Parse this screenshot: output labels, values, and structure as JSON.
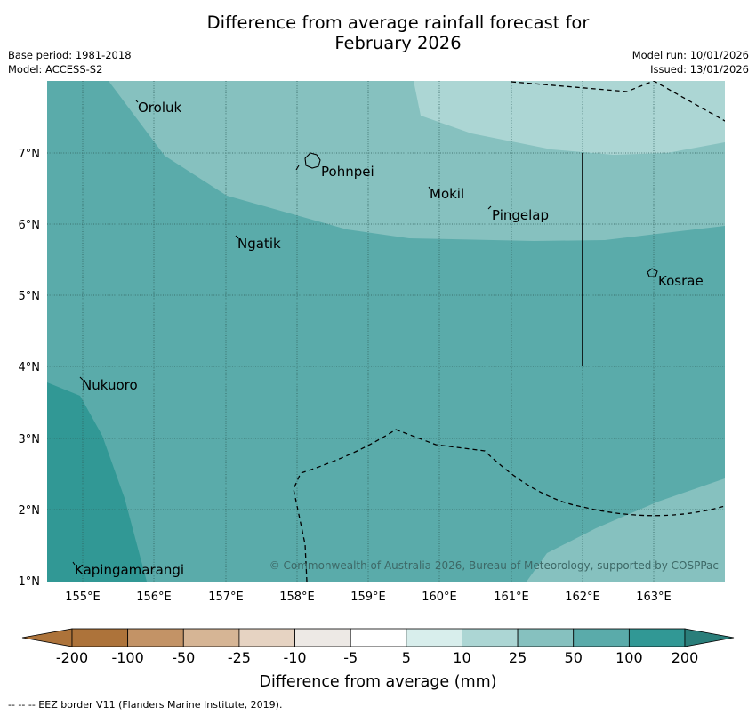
{
  "title": {
    "line1": "Difference from average rainfall forecast for",
    "line2": "February 2026"
  },
  "meta": {
    "base_period": "Base period: 1981-2018",
    "model": "Model: ACCESS-S2",
    "model_run": "Model run: 10/01/2026",
    "issued": "Issued: 13/01/2026"
  },
  "axes": {
    "lon_labels": [
      "155°E",
      "156°E",
      "157°E",
      "158°E",
      "159°E",
      "160°E",
      "161°E",
      "162°E",
      "163°E"
    ],
    "lat_labels": [
      "7°N",
      "6°N",
      "5°N",
      "4°N",
      "3°N",
      "2°N",
      "1°N"
    ]
  },
  "places": {
    "oroluk": "Oroluk",
    "pohnpei": "Pohnpei",
    "mokil": "Mokil",
    "pingelap": "Pingelap",
    "ngatik": "Ngatik",
    "kosrae": "Kosrae",
    "nukuoro": "Nukuoro",
    "kapingamarangi": "Kapingamarangi"
  },
  "copyright": "© Commonwealth of Australia 2026, Bureau of Meteorology, supported by COSPPac",
  "colorbar": {
    "ticks": [
      "-200",
      "-100",
      "-50",
      "-25",
      "-10",
      "-5",
      "5",
      "10",
      "25",
      "50",
      "100",
      "200"
    ],
    "colors": [
      "#ad733a",
      "#c39366",
      "#d6b595",
      "#e6d3c2",
      "#ede9e5",
      "#ffffff",
      "#d8eeec",
      "#acd6d4",
      "#86c1bf",
      "#5aabaa",
      "#319895",
      "#2a7e7a"
    ],
    "label": "Difference from average (mm)"
  },
  "footnote": "--  --  -- EEZ border V11 (Flanders Marine Institute, 2019).",
  "region_colors": {
    "c50_100": "#5aabaa",
    "c25_50": "#86c1bf",
    "c10_25": "#acd6d4",
    "c100_200": "#319895"
  }
}
